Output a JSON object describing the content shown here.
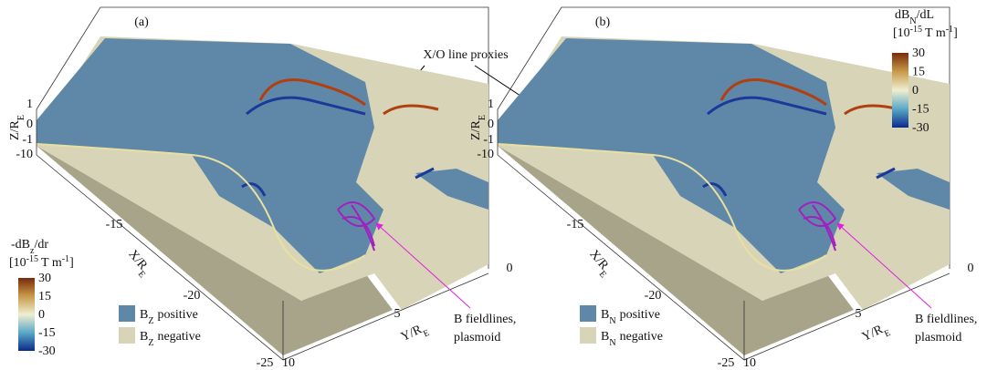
{
  "figure": {
    "annotation": "X/O line proxies",
    "panels": [
      {
        "label": "(a)",
        "z_axis": {
          "label": "Z/R",
          "sub": "E",
          "ticks": [
            "1",
            "0",
            "-1",
            "-10"
          ]
        },
        "x_axis": {
          "label": "X/R",
          "sub": "E",
          "ticks": [
            "-15",
            "-20",
            "-25"
          ]
        },
        "y_axis": {
          "label": "Y/R",
          "sub": "E",
          "ticks": [
            "0",
            "5",
            "10"
          ]
        },
        "colorbar": {
          "title": "-dB",
          "title_sub": "z",
          "title_rest": "/dr",
          "units": "[10",
          "units_sup": "-15",
          "units_mid": "T m",
          "units_sup2": "-1",
          "units_end": "]",
          "ticks": [
            "30",
            "15",
            "0",
            "-15",
            "-30"
          ]
        },
        "legend": [
          {
            "symbol": "B",
            "sub": "Z",
            "text": "positive"
          },
          {
            "symbol": "B",
            "sub": "Z",
            "text": "negative"
          }
        ],
        "fieldlines": [
          "B fieldlines,",
          "plasmoid"
        ]
      },
      {
        "label": "(b)",
        "z_axis": {
          "label": "Z/R",
          "sub": "E",
          "ticks": [
            "1",
            "0",
            "-1",
            "-10"
          ]
        },
        "x_axis": {
          "label": "X/R",
          "sub": "E",
          "ticks": [
            "-15",
            "-20",
            "-25"
          ]
        },
        "y_axis": {
          "label": "Y/R",
          "sub": "E",
          "ticks": [
            "0",
            "5",
            "10"
          ]
        },
        "colorbar": {
          "title": "dB",
          "title_sub": "N",
          "title_rest": "/dL",
          "units": "[10",
          "units_sup": "-15",
          "units_mid": "T m",
          "units_sup2": "-1",
          "units_end": "]",
          "ticks": [
            "30",
            "15",
            "0",
            "-15",
            "-30"
          ]
        },
        "legend": [
          {
            "symbol": "B",
            "sub": "N",
            "text": "positive"
          },
          {
            "symbol": "B",
            "sub": "N",
            "text": "negative"
          }
        ],
        "fieldlines": [
          "B fieldlines,",
          "plasmoid"
        ]
      }
    ]
  }
}
